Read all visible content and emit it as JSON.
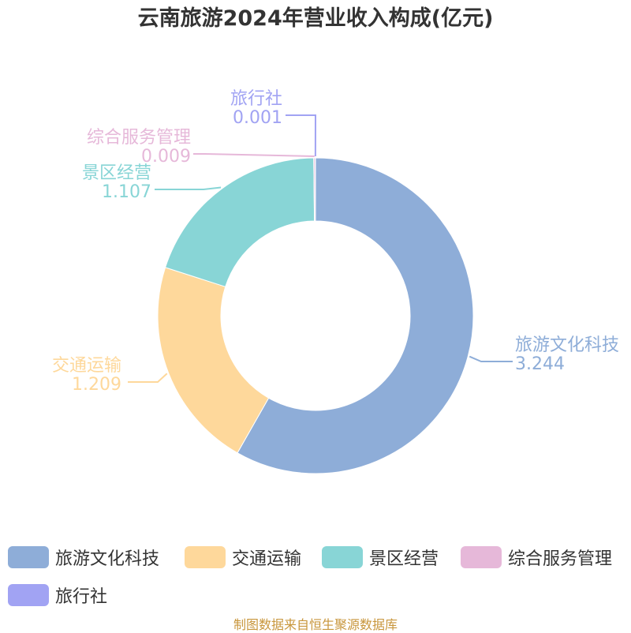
{
  "title": "云南旅游2024年营业收入构成(亿元)",
  "source": "制图数据来自恒生聚源数据库",
  "chart_data": {
    "type": "pie",
    "variant": "donut",
    "title": "云南旅游2024年营业收入构成(亿元)",
    "unit": "亿元",
    "legend_position": "bottom",
    "slices": [
      {
        "name": "旅游文化科技",
        "value": 3.244,
        "value_label": "3.244",
        "color": "#8eadd8"
      },
      {
        "name": "交通运输",
        "value": 1.209,
        "value_label": "1.209",
        "color": "#fed89b"
      },
      {
        "name": "景区经营",
        "value": 1.107,
        "value_label": "1.107",
        "color": "#88d5d6"
      },
      {
        "name": "综合服务管理",
        "value": 0.009,
        "value_label": "0.009",
        "color": "#e6b8d9"
      },
      {
        "name": "旅行社",
        "value": 0.001,
        "value_label": "0.001",
        "color": "#a1a3f3"
      }
    ]
  }
}
